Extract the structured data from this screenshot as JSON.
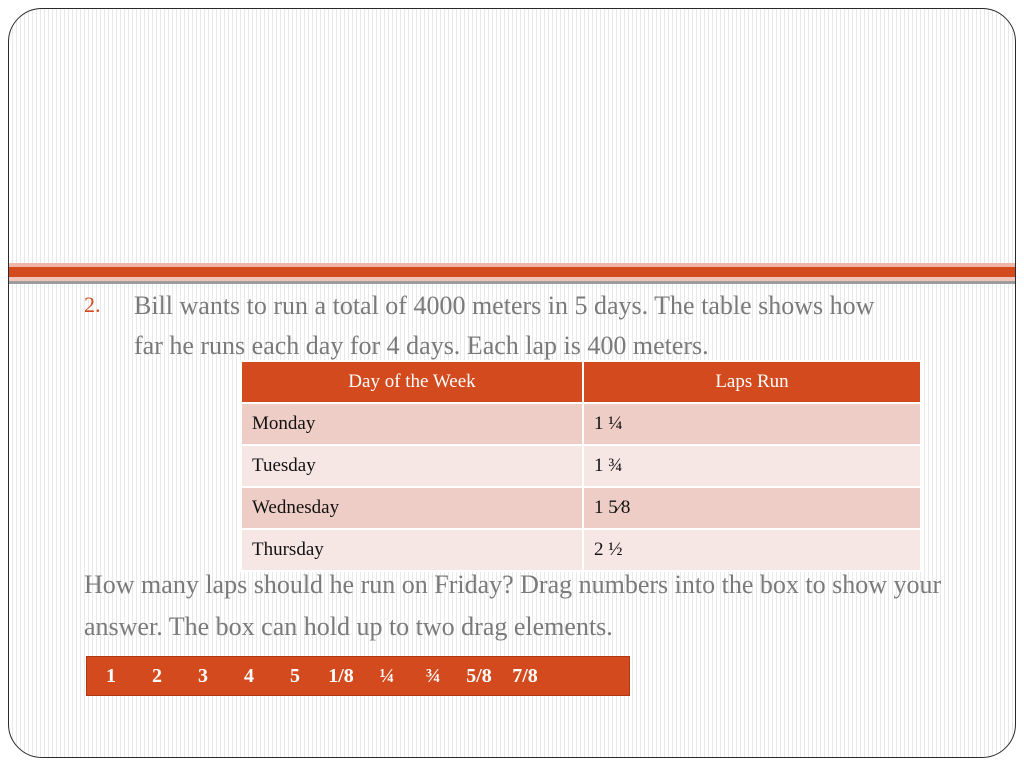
{
  "question": {
    "number": "2.",
    "text": "Bill wants to run a total of 4000 meters in 5 days.  The table shows how far he runs each day for 4 days.  Each lap is 400 meters."
  },
  "table": {
    "headers": [
      "Day of the Week",
      "Laps Run"
    ],
    "rows": [
      {
        "day": "Monday",
        "laps": "1 ¼"
      },
      {
        "day": "Tuesday",
        "laps": "1 ¾"
      },
      {
        "day": "Wednesday",
        "laps": "1 5⁄8"
      },
      {
        "day": "Thursday",
        "laps": "2 ½"
      }
    ]
  },
  "prompt": "How many laps should he run on Friday?  Drag numbers into the box to show your answer. The box can hold up to two drag elements.",
  "tiles": [
    "1",
    "2",
    "3",
    "4",
    "5",
    "1/8",
    "¼",
    "¾",
    "5/8",
    "7/8"
  ],
  "colors": {
    "accent": "#d24a1d",
    "row_odd": "#eecdc6",
    "row_even": "#f7e7e4",
    "text_gray": "#7a7a7a"
  }
}
